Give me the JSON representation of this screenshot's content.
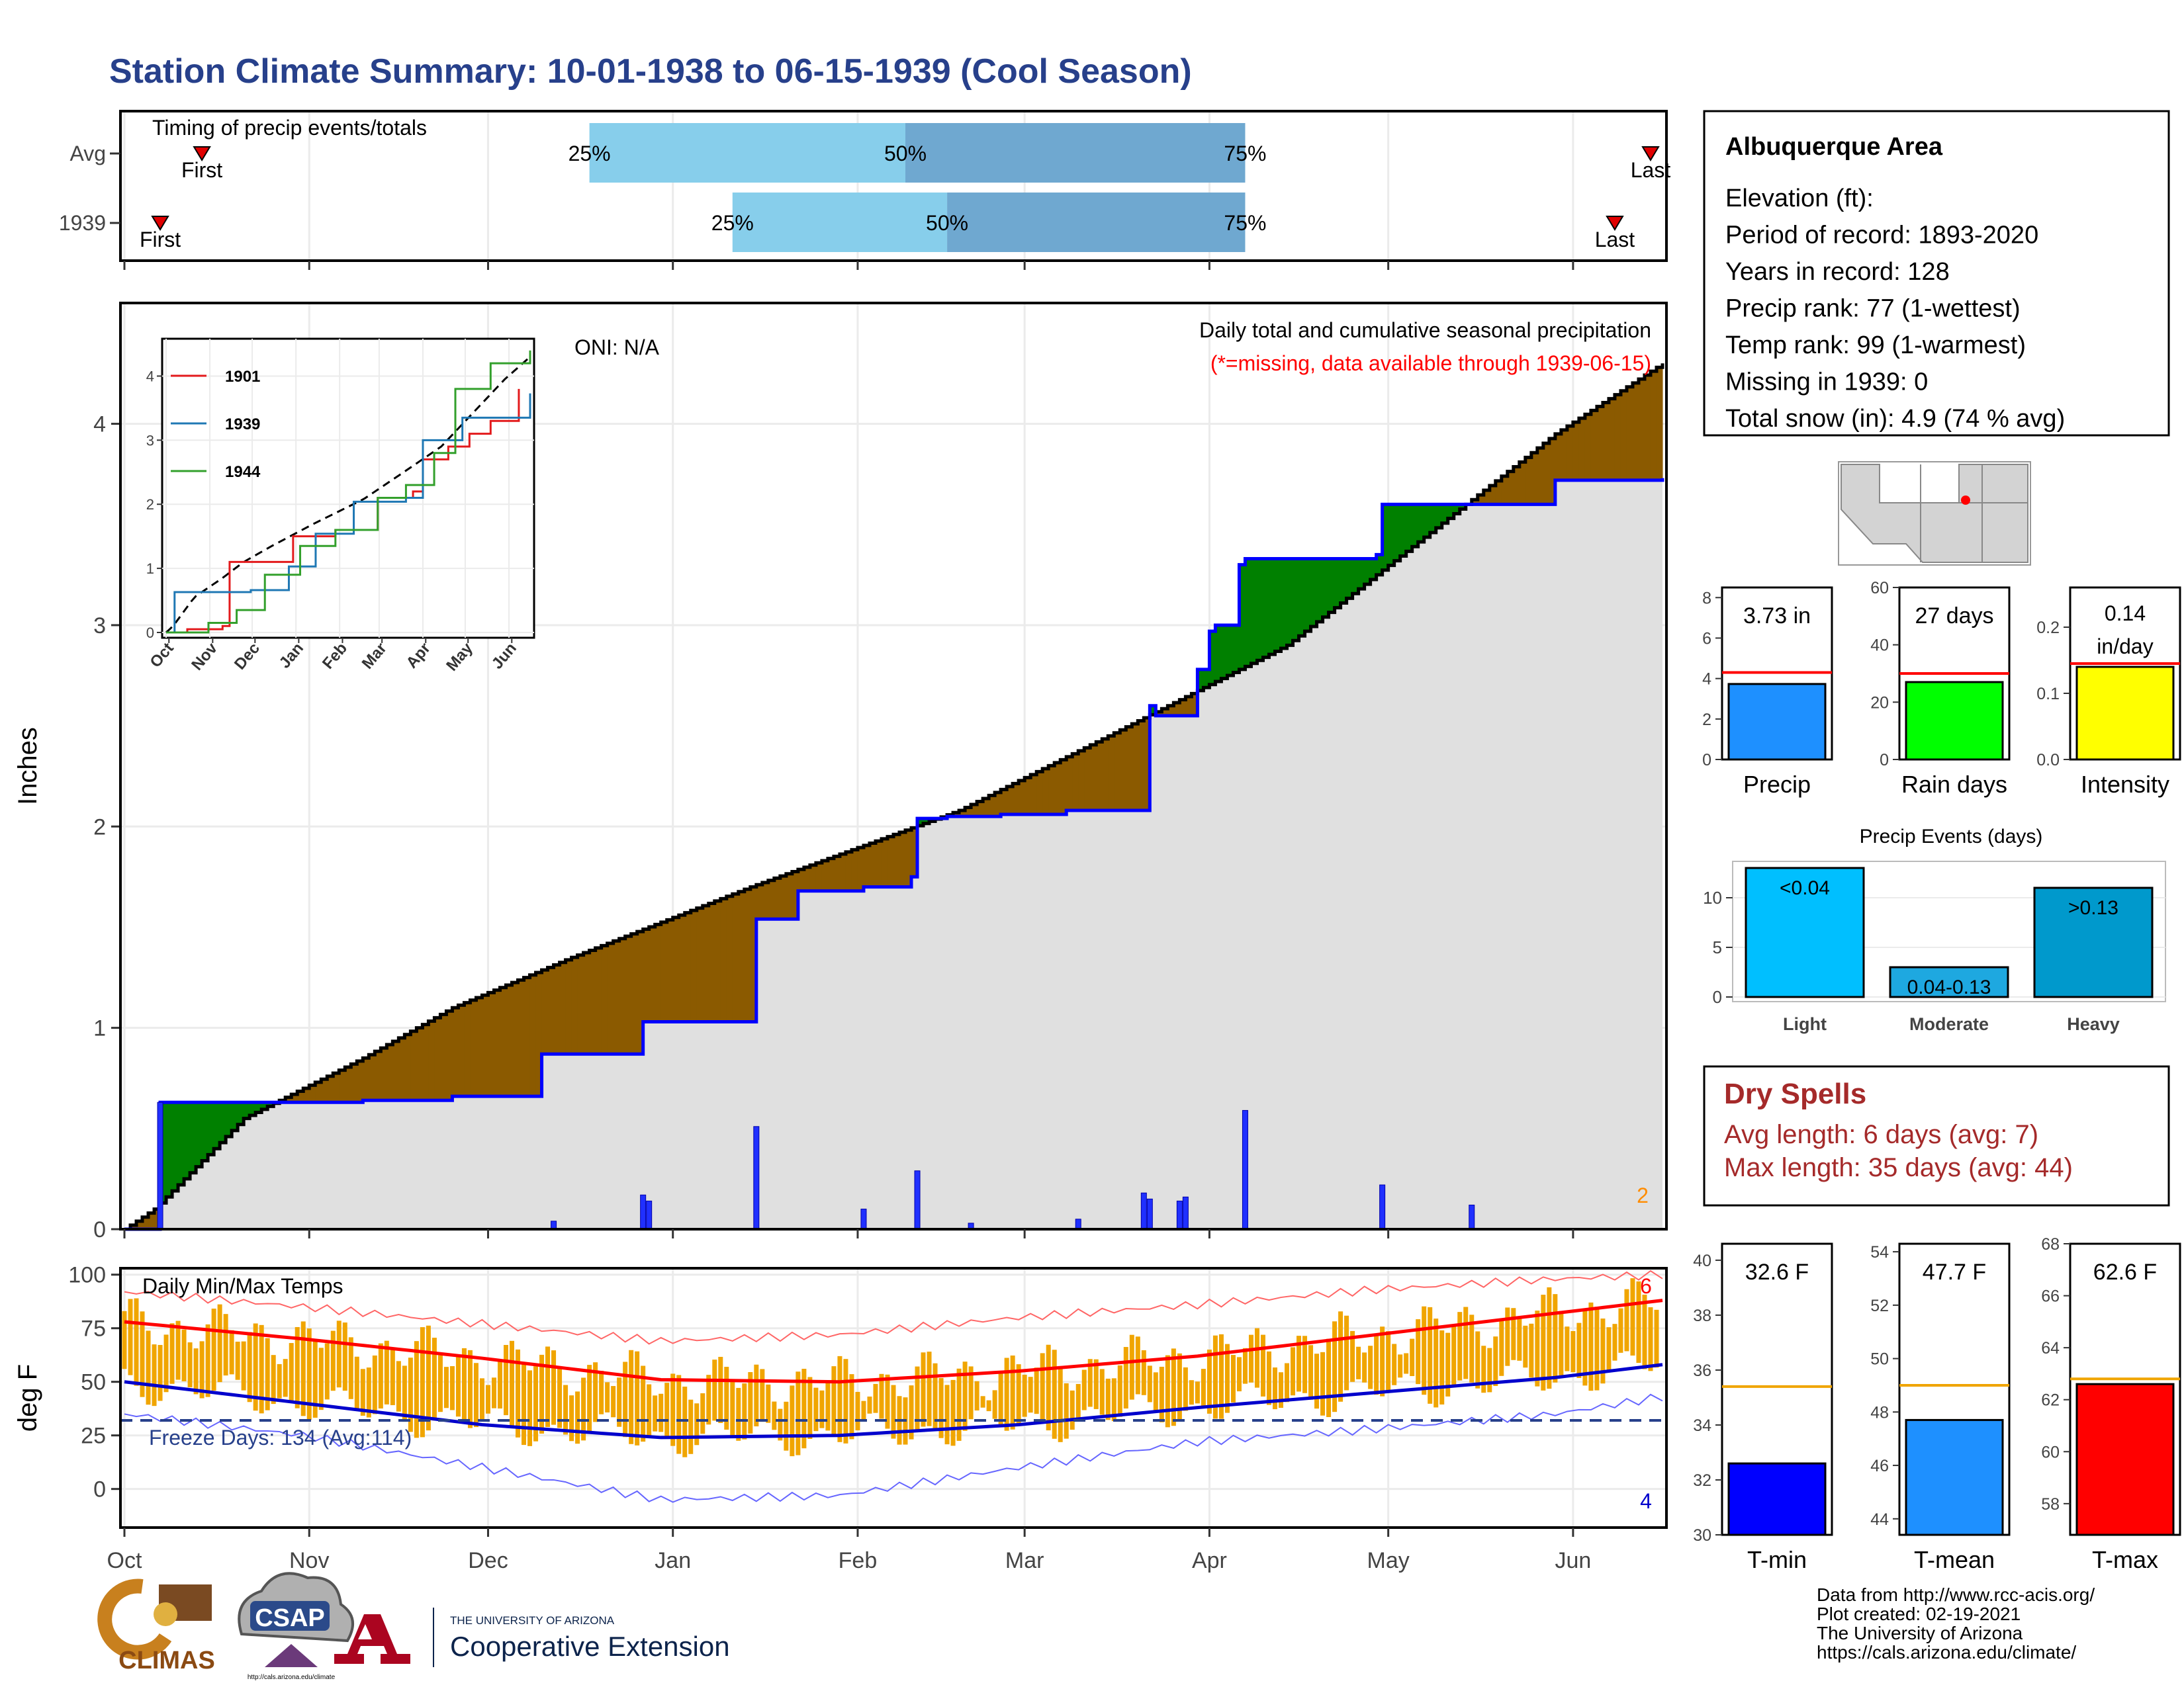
{
  "title": "Station Climate Summary: 10-01-1938 to 06-15-1939 (Cool Season)",
  "months": [
    "Oct",
    "Nov",
    "Dec",
    "Jan",
    "Feb",
    "Mar",
    "Apr",
    "May",
    "Jun"
  ],
  "timing": {
    "label": "Timing of precip events/totals",
    "rows": [
      "Avg",
      "1939"
    ],
    "first_label": "First",
    "last_label": "Last",
    "p25": "25%",
    "p50": "50%",
    "p75": "75%",
    "avg_days": {
      "first": 13,
      "p25": 78,
      "p50": 131,
      "p75": 188,
      "last": 256
    },
    "year_days": {
      "first": 6,
      "p25": 102,
      "p50": 138,
      "p75": 188,
      "last": 250
    }
  },
  "info": {
    "station": "Albuquerque Area",
    "lines": [
      "Elevation (ft):",
      "Period of record: 1893-2020",
      "Years in record: 128",
      "Precip rank: 77 (1-wettest)",
      "Temp rank: 99 (1-warmest)",
      "Missing in 1939: 0",
      "Total snow (in): 4.9 (74 % avg)"
    ]
  },
  "precip_panel": {
    "ylabel": "Inches",
    "oni": "ONI: N/A",
    "note1": "Daily total and cumulative seasonal precipitation",
    "note2": "(*=missing, data available through 1939-06-15)",
    "corner_count": "2",
    "ylim": [
      0,
      4.6
    ],
    "yticks": [
      0,
      1,
      2,
      3,
      4
    ],
    "colors": {
      "climo": "#000000",
      "year": "#0000ff",
      "wetter": "#008000",
      "drier": "#8b5a00",
      "fill": "#e0e0e0"
    }
  },
  "chart_data": [
    {
      "type": "area",
      "title": "Daily total and cumulative seasonal precipitation",
      "ylabel": "Inches",
      "ylim": [
        0,
        4.6
      ],
      "series": [
        {
          "name": "climo",
          "x_days": [
            0,
            5,
            20,
            40,
            55,
            75,
            105,
            140,
            165,
            195,
            225,
            240,
            258
          ],
          "values": [
            0,
            0.1,
            0.55,
            0.85,
            1.1,
            1.35,
            1.7,
            2.08,
            2.45,
            2.9,
            3.6,
            3.95,
            4.3
          ]
        },
        {
          "name": "1939",
          "x_days": [
            0,
            5,
            6,
            11,
            14,
            27,
            40,
            55,
            60,
            69,
            69.4,
            69.8,
            87,
            88,
            106,
            112,
            113,
            124,
            132,
            133,
            138,
            147,
            158,
            167,
            172,
            173,
            180,
            182,
            183,
            187,
            188,
            210,
            211,
            240,
            258
          ],
          "values": [
            0,
            0,
            0.63,
            0.63,
            0.63,
            0.63,
            0.64,
            0.66,
            0.66,
            0.66,
            0.7,
            0.87,
            1.03,
            1.03,
            1.54,
            1.54,
            1.68,
            1.7,
            1.75,
            2.04,
            2.05,
            2.06,
            2.08,
            2.08,
            2.6,
            2.55,
            2.78,
            2.97,
            3.0,
            3.3,
            3.33,
            3.35,
            3.6,
            3.72,
            3.73
          ]
        },
        {
          "name": "daily",
          "x_days": [
            6,
            72,
            87,
            88,
            106,
            124,
            133,
            142,
            160,
            171,
            172,
            177,
            178,
            188,
            211,
            226
          ],
          "values": [
            0.63,
            0.04,
            0.17,
            0.14,
            0.51,
            0.1,
            0.29,
            0.03,
            0.05,
            0.18,
            0.15,
            0.14,
            0.16,
            0.59,
            0.22,
            0.12
          ]
        }
      ]
    },
    {
      "type": "line",
      "title": "",
      "series": [
        {
          "name": "1901",
          "x_days": [
            0,
            15,
            40,
            45,
            75,
            90,
            120,
            150,
            175,
            182,
            200,
            215,
            230,
            250
          ],
          "values": [
            0,
            0.05,
            0.1,
            1.1,
            1.1,
            1.5,
            1.6,
            2.1,
            2.2,
            2.7,
            2.9,
            3.1,
            3.3,
            3.8
          ]
        },
        {
          "name": "1939",
          "x_days": [
            0,
            6,
            60,
            87,
            106,
            133,
            170,
            182,
            210,
            258
          ],
          "values": [
            0,
            0.63,
            0.66,
            1.03,
            1.54,
            2.04,
            2.1,
            3.0,
            3.35,
            3.73
          ]
        },
        {
          "name": "1944",
          "x_days": [
            0,
            30,
            50,
            70,
            95,
            120,
            150,
            170,
            190,
            205,
            230,
            258
          ],
          "values": [
            0,
            0.15,
            0.35,
            0.9,
            1.35,
            1.6,
            2.1,
            2.3,
            2.8,
            3.8,
            4.2,
            4.4
          ]
        }
      ]
    },
    {
      "type": "bar",
      "categories": [
        "Precip"
      ],
      "values": [
        3.73
      ],
      "ylim": [
        0,
        8.5
      ],
      "avg": 4.3
    },
    {
      "type": "bar",
      "categories": [
        "Rain days"
      ],
      "values": [
        27
      ],
      "ylim": [
        0,
        60
      ],
      "avg": 30
    },
    {
      "type": "bar",
      "categories": [
        "Intensity"
      ],
      "values": [
        0.14
      ],
      "ylim": [
        0,
        0.26
      ],
      "avg": 0.145
    },
    {
      "type": "bar",
      "title": "Precip Events (days)",
      "categories": [
        "Light",
        "Moderate",
        "Heavy"
      ],
      "values": [
        13,
        3,
        11
      ],
      "ylim": [
        0,
        13
      ]
    },
    {
      "type": "line",
      "title": "Daily Min/Max Temps",
      "ylabel": "deg F",
      "ylim": [
        -18,
        103
      ],
      "series": [
        {
          "name": "avg_max",
          "x_days": [
            0,
            30,
            60,
            90,
            120,
            150,
            180,
            210,
            240,
            258
          ],
          "values": [
            78,
            70,
            61,
            51,
            50,
            55,
            62,
            72,
            82,
            88
          ]
        },
        {
          "name": "avg_min",
          "x_days": [
            0,
            30,
            60,
            90,
            120,
            150,
            180,
            210,
            240,
            258
          ],
          "values": [
            50,
            40,
            30,
            24,
            25,
            30,
            38,
            45,
            52,
            58
          ]
        },
        {
          "name": "record_max",
          "x_days": [
            0,
            30,
            60,
            90,
            120,
            150,
            180,
            210,
            240,
            258
          ],
          "values": [
            92,
            85,
            77,
            69,
            72,
            80,
            86,
            93,
            98,
            100
          ]
        },
        {
          "name": "record_min",
          "x_days": [
            0,
            30,
            60,
            90,
            120,
            150,
            180,
            210,
            240,
            258
          ],
          "values": [
            35,
            25,
            10,
            -5,
            -3,
            10,
            22,
            28,
            35,
            43
          ]
        }
      ]
    },
    {
      "type": "bar",
      "categories": [
        "T-min"
      ],
      "values": [
        32.6
      ],
      "ylim": [
        30,
        40.6
      ],
      "avg": 35.4
    },
    {
      "type": "bar",
      "categories": [
        "T-mean"
      ],
      "values": [
        47.7
      ],
      "ylim": [
        43.4,
        54.3
      ],
      "avg": 49
    },
    {
      "type": "bar",
      "categories": [
        "T-max"
      ],
      "values": [
        62.6
      ],
      "ylim": [
        56.8,
        68
      ],
      "avg": 62.8
    }
  ],
  "inset": {
    "yticks": [
      0,
      1,
      2,
      3,
      4
    ],
    "legend": [
      {
        "name": "1901",
        "color": "#e31a1c"
      },
      {
        "name": "1939",
        "color": "#1f78b4"
      },
      {
        "name": "1944",
        "color": "#33a02c"
      }
    ]
  },
  "temp_panel": {
    "ylabel": "deg F",
    "label": "Daily Min/Max Temps",
    "freeze": "Freeze Days: 134 (Avg:114)",
    "freeze_line": 32,
    "yticks": [
      0,
      25,
      50,
      75,
      100
    ],
    "count_max": "6",
    "count_min": "4",
    "colors": {
      "bars": "#f0a500",
      "avg_max": "#ff0000",
      "avg_min": "#0000cc"
    }
  },
  "summary_bars": {
    "precip": {
      "label": "3.73 in",
      "name": "Precip",
      "color": "#1e90ff",
      "yticks": [
        0,
        2,
        4,
        6,
        8
      ]
    },
    "raindays": {
      "label": "27 days",
      "name": "Rain days",
      "color": "#00ff00",
      "yticks": [
        0,
        20,
        40,
        60
      ]
    },
    "intensity": {
      "label1": "0.14",
      "label2": "in/day",
      "name": "Intensity",
      "color": "#ffff00",
      "yticks": [
        "0.0",
        "0.1",
        "0.2"
      ]
    }
  },
  "events": {
    "title": "Precip Events (days)",
    "labels": [
      "<0.04",
      "0.04-0.13",
      ">0.13"
    ],
    "names": [
      "Light",
      "Moderate",
      "Heavy"
    ],
    "colors": [
      "#00bfff",
      "#1ea8e0",
      "#0099cc"
    ],
    "yticks": [
      0,
      5,
      10
    ]
  },
  "dry_spells": {
    "title": "Dry Spells",
    "line1": "Avg length: 6 days (avg: 7)",
    "line2": "Max length: 35 days (avg: 44)"
  },
  "temp_bars": {
    "tmin": {
      "label": "32.6 F",
      "name": "T-min",
      "color": "#0000ff",
      "yticks": [
        30,
        32,
        34,
        36,
        38,
        40
      ]
    },
    "tmean": {
      "label": "47.7 F",
      "name": "T-mean",
      "color": "#1e90ff",
      "yticks": [
        44,
        46,
        48,
        50,
        52,
        54
      ]
    },
    "tmax": {
      "label": "62.6 F",
      "name": "T-max",
      "color": "#ff0000",
      "yticks": [
        58,
        60,
        62,
        64,
        66,
        68
      ]
    }
  },
  "credits": [
    "Data from http://www.rcc-acis.org/",
    "Plot created: 02-19-2021",
    "The University of Arizona",
    "https://cals.arizona.edu/climate/"
  ],
  "logos": {
    "climas": "CLIMAS",
    "csap": "CSAP",
    "csap_url": "http://cals.arizona.edu/climate",
    "ua_small": "THE UNIVERSITY OF ARIZONA",
    "ua_big": "Cooperative Extension"
  }
}
